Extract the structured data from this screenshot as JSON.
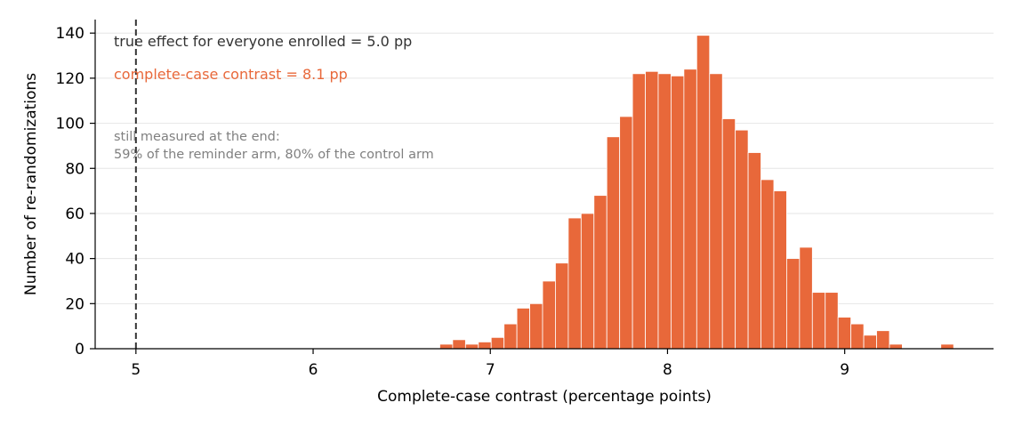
{
  "chart_data": {
    "type": "bar",
    "subtype": "histogram",
    "xlabel": "Complete-case contrast (percentage points)",
    "ylabel": "Number of re-randomizations",
    "xlim": [
      4.77,
      9.84
    ],
    "ylim": [
      0,
      146
    ],
    "xticks": [
      5,
      6,
      7,
      8,
      9
    ],
    "yticks": [
      0,
      20,
      40,
      60,
      80,
      100,
      120,
      140
    ],
    "grid": "horizontal",
    "bar_color": "#e8683a",
    "bin_width": 0.0725,
    "bins_start": 6.715,
    "counts": [
      2,
      4,
      2,
      3,
      5,
      11,
      18,
      20,
      30,
      38,
      58,
      60,
      68,
      94,
      103,
      122,
      123,
      122,
      121,
      124,
      139,
      122,
      102,
      97,
      87,
      75,
      70,
      40,
      45,
      25,
      25,
      14,
      11,
      6,
      8,
      2,
      0,
      0,
      0,
      2
    ],
    "reference_line": {
      "x": 5.0,
      "style": "dashed",
      "color": "#333333"
    },
    "annotations": {
      "true_effect": {
        "text": "true effect for everyone enrolled = 5.0 pp",
        "color": "#333333"
      },
      "complete_case": {
        "text": "complete-case contrast = 8.1 pp",
        "color": "#e8683a"
      },
      "measured_line1": {
        "text": "still measured at the end:",
        "color": "#808080"
      },
      "measured_line2": {
        "text": "59% of the reminder arm, 80% of the control arm",
        "color": "#808080"
      }
    }
  }
}
